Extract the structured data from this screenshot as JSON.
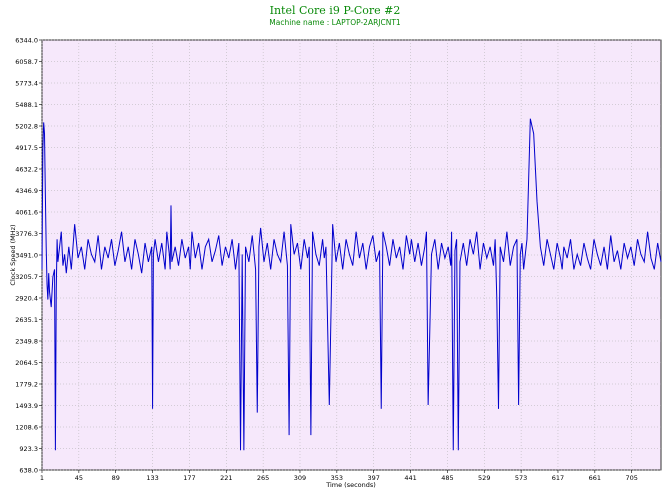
{
  "chart_data": {
    "type": "line",
    "title": "Intel Core i9 P-Core #2",
    "subtitle": "Machine name : LAPTOP-2ARJCNT1",
    "xlabel": "Time (seconds)",
    "ylabel": "Clock Speed (MHz)",
    "xlim": [
      1,
      740
    ],
    "ylim": [
      638.0,
      6344.0
    ],
    "x_ticks": [
      1,
      45,
      89,
      133,
      177,
      221,
      265,
      309,
      353,
      397,
      441,
      485,
      529,
      573,
      617,
      661,
      705
    ],
    "y_ticks": [
      "638.0",
      "923.3",
      "1208.6",
      "1493.9",
      "1779.2",
      "2064.5",
      "2349.8",
      "2635.1",
      "2920.4",
      "3205.7",
      "3491.0",
      "3776.3",
      "4061.6",
      "4346.9",
      "4632.2",
      "4917.5",
      "5202.8",
      "5488.1",
      "5773.4",
      "6058.7",
      "6344.0"
    ],
    "grid": true,
    "colors": {
      "line": "#0000cc",
      "plot_background": "#f6e8fb",
      "grid": "#b0b0b0",
      "title": "#0a8a0a"
    },
    "series": [
      {
        "name": "",
        "x": [
          1,
          2,
          3,
          4,
          5,
          6,
          7,
          8,
          9,
          10,
          12,
          14,
          16,
          17,
          18,
          19,
          20,
          22,
          24,
          26,
          28,
          30,
          33,
          36,
          40,
          44,
          48,
          52,
          56,
          60,
          64,
          68,
          72,
          76,
          80,
          84,
          88,
          92,
          96,
          100,
          104,
          108,
          112,
          116,
          120,
          124,
          128,
          132,
          133,
          134,
          136,
          140,
          144,
          148,
          150,
          153,
          154,
          155,
          156,
          160,
          164,
          168,
          172,
          176,
          178,
          180,
          184,
          188,
          192,
          196,
          200,
          204,
          208,
          212,
          216,
          220,
          224,
          228,
          232,
          236,
          238,
          240,
          242,
          244,
          248,
          252,
          256,
          258,
          260,
          262,
          266,
          270,
          274,
          278,
          282,
          286,
          290,
          294,
          296,
          298,
          302,
          306,
          310,
          314,
          318,
          320,
          322,
          324,
          328,
          332,
          336,
          338,
          340,
          344,
          348,
          352,
          356,
          360,
          364,
          368,
          372,
          376,
          380,
          384,
          388,
          392,
          396,
          400,
          404,
          406,
          408,
          412,
          416,
          420,
          424,
          428,
          432,
          436,
          440,
          442,
          446,
          450,
          454,
          458,
          460,
          462,
          466,
          470,
          474,
          478,
          482,
          486,
          489,
          490,
          492,
          494,
          496,
          498,
          500,
          504,
          508,
          512,
          516,
          520,
          524,
          528,
          532,
          536,
          540,
          542,
          544,
          546,
          548,
          552,
          556,
          560,
          564,
          568,
          570,
          572,
          574,
          576,
          580,
          584,
          588,
          592,
          596,
          600,
          604,
          608,
          612,
          616,
          620,
          622,
          624,
          628,
          632,
          636,
          640,
          644,
          648,
          652,
          656,
          660,
          664,
          668,
          672,
          676,
          680,
          684,
          688,
          692,
          696,
          700,
          704,
          708,
          712,
          716,
          720,
          724,
          728,
          732,
          736,
          740
        ],
        "y": [
          3300,
          4900,
          5250,
          5100,
          4300,
          3600,
          3100,
          2900,
          3250,
          3000,
          2800,
          3200,
          3300,
          900,
          3000,
          3700,
          3400,
          3600,
          3800,
          3350,
          3500,
          3250,
          3600,
          3300,
          3900,
          3450,
          3600,
          3300,
          3700,
          3500,
          3400,
          3750,
          3300,
          3600,
          3450,
          3700,
          3350,
          3550,
          3800,
          3400,
          3600,
          3300,
          3700,
          3500,
          3250,
          3650,
          3400,
          3600,
          1450,
          3500,
          3700,
          3400,
          3650,
          3300,
          3800,
          3500,
          3300,
          4150,
          3400,
          3600,
          3350,
          3700,
          3450,
          3600,
          3300,
          3800,
          3450,
          3650,
          3300,
          3600,
          3700,
          3400,
          3550,
          3750,
          3350,
          3600,
          3450,
          3700,
          3300,
          3650,
          900,
          3500,
          900,
          3600,
          3400,
          3750,
          3300,
          1400,
          3600,
          3850,
          3400,
          3650,
          3300,
          3700,
          3500,
          3400,
          3800,
          3350,
          1100,
          3900,
          3500,
          3650,
          3300,
          3700,
          3450,
          3600,
          1100,
          3800,
          3500,
          3350,
          3700,
          3450,
          3600,
          1500,
          3900,
          3400,
          3650,
          3300,
          3700,
          3500,
          3350,
          3800,
          3450,
          3650,
          3300,
          3600,
          3750,
          3400,
          3550,
          1450,
          3800,
          3600,
          3350,
          3700,
          3450,
          3600,
          3300,
          3750,
          3500,
          3700,
          3400,
          3650,
          3350,
          3600,
          3800,
          1500,
          3500,
          3700,
          3300,
          3650,
          3450,
          3600,
          3350,
          3800,
          900,
          3550,
          3700,
          900,
          3400,
          3650,
          3350,
          3700,
          3500,
          3800,
          3300,
          3650,
          3450,
          3600,
          3350,
          3700,
          2900,
          1450,
          3600,
          3400,
          3800,
          3350,
          3600,
          3700,
          1500,
          3500,
          3650,
          3300,
          3700,
          5300,
          5100,
          4200,
          3600,
          3350,
          3700,
          3500,
          3300,
          3650,
          3450,
          3300,
          3600,
          3450,
          3700,
          3300,
          3500,
          3350,
          3650,
          3450,
          3300,
          3700,
          3500,
          3350,
          3600,
          3300,
          3750,
          3400,
          3550,
          3300,
          3650,
          3450,
          3600,
          3350,
          3700,
          3500,
          3400,
          3800,
          3450,
          3300,
          3650,
          3400
        ]
      }
    ]
  }
}
